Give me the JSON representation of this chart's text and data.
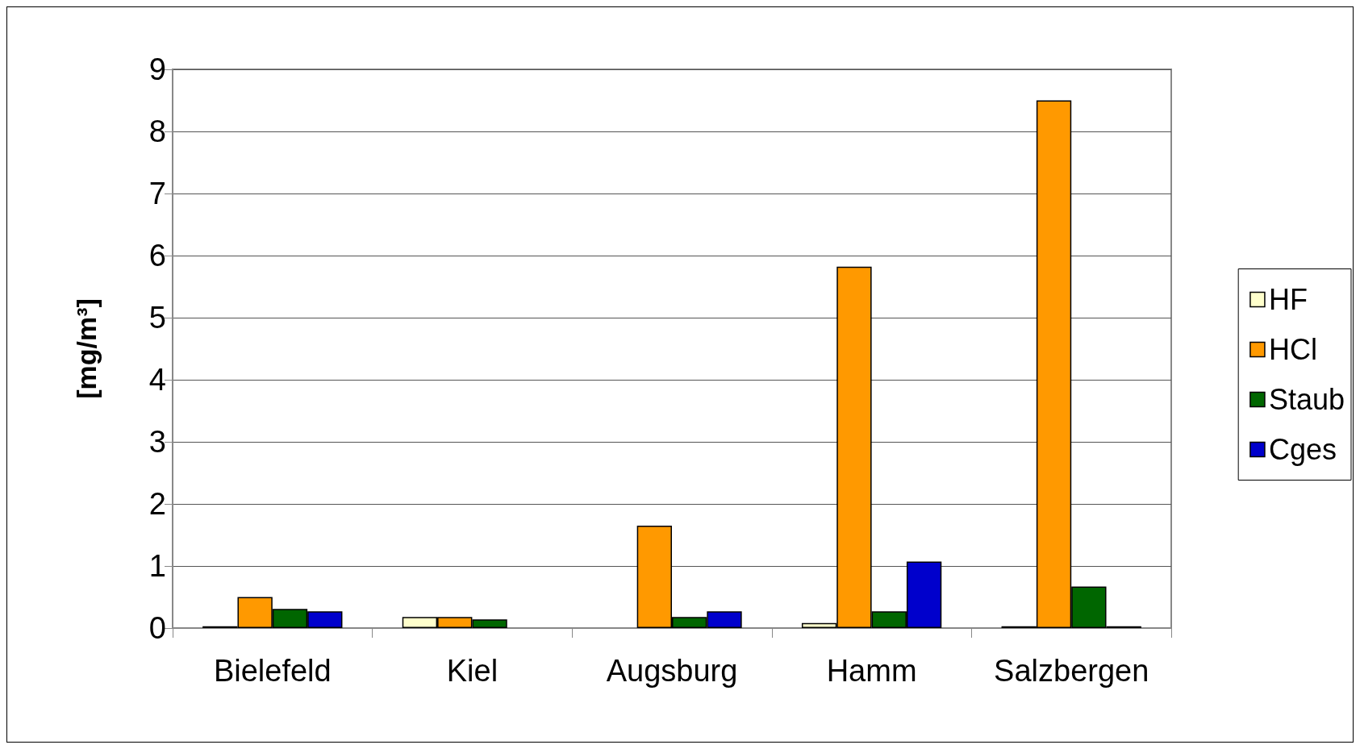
{
  "chart_data": {
    "type": "bar",
    "ylabel": "[mg/m³]",
    "categories": [
      "Bielefeld",
      "Kiel",
      "Augsburg",
      "Hamm",
      "Salzbergen"
    ],
    "series": [
      {
        "name": "HF",
        "color": "#ffffcc",
        "values": [
          0.03,
          0.18,
          null,
          0.08,
          0.03
        ]
      },
      {
        "name": "HCl",
        "color": "#ff9900",
        "values": [
          0.5,
          0.18,
          1.65,
          5.82,
          8.5
        ]
      },
      {
        "name": "Staub",
        "color": "#006600",
        "values": [
          0.31,
          0.14,
          0.18,
          0.27,
          0.67
        ]
      },
      {
        "name": "Cges",
        "color": "#0000cc",
        "values": [
          0.27,
          null,
          0.27,
          1.07,
          0.03
        ]
      }
    ],
    "ylim": [
      0,
      9
    ],
    "yticks": [
      0,
      1,
      2,
      3,
      4,
      5,
      6,
      7,
      8,
      9
    ],
    "grid": "y",
    "legend": "right"
  }
}
